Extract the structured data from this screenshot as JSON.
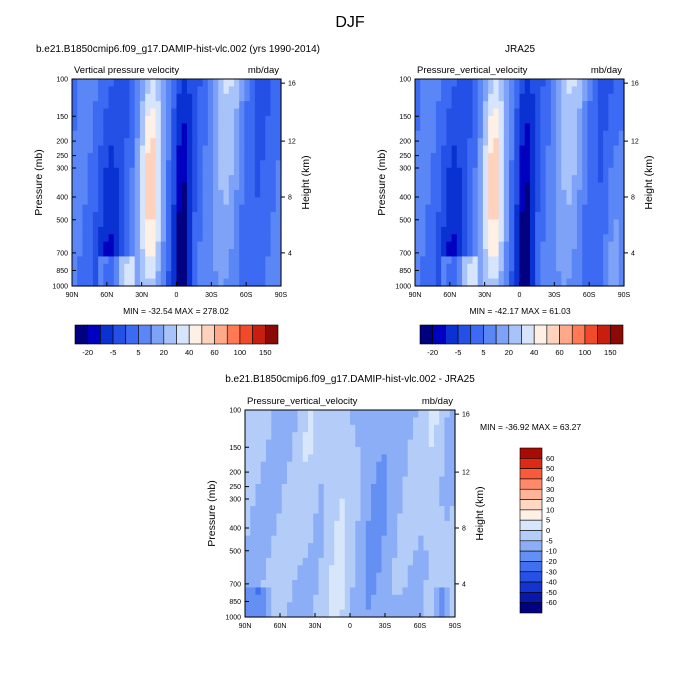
{
  "page": {
    "title": "DJF"
  },
  "colors": {
    "cbar_abs": [
      "#000080",
      "#0000c0",
      "#0a32d2",
      "#2450e6",
      "#3c6af2",
      "#5a86f6",
      "#7ea2f8",
      "#a8c2fa",
      "#d6e4fc",
      "#fff0e6",
      "#ffd2be",
      "#ffa88a",
      "#ff7a54",
      "#f04a2a",
      "#c81e10",
      "#8c0a06"
    ],
    "cbar_diff": [
      "#000080",
      "#0818a8",
      "#1434d0",
      "#2650e6",
      "#4070f0",
      "#6490f4",
      "#8caef6",
      "#b4ccf8",
      "#d8e6fc",
      "#fff0e6",
      "#ffd8c4",
      "#ffb49a",
      "#ff8a6a",
      "#f85a3a",
      "#dc2a14",
      "#a80a04"
    ]
  },
  "chart_data": [
    {
      "type": "heatmap",
      "title": "b.e21.B1850cmip6.f09_g17.DAMIP-hist-vlc.002 (yrs 1990-2014)",
      "subtitle_left": "Vertical pressure velocity",
      "subtitle_right": "mb/day",
      "ylabel": "Pressure (mb)",
      "ylabel_right": "Height (km)",
      "x_ticks": [
        "90N",
        "60N",
        "30N",
        "0",
        "30S",
        "60S",
        "90S"
      ],
      "y_ticks": [
        "100",
        "150",
        "200",
        "250",
        "300",
        "400",
        "500",
        "700",
        "850",
        "1000"
      ],
      "y_ticks_right": [
        "16",
        "12",
        "8",
        "4"
      ],
      "min_max": "MIN = -32.54  MAX = 278.02",
      "colorbar_labels": [
        "-20",
        "-5",
        "5",
        "20",
        "40",
        "60",
        "100",
        "150"
      ]
    },
    {
      "type": "heatmap",
      "title": "JRA25",
      "subtitle_left": "Pressure_vertical_velocity",
      "subtitle_right": "mb/day",
      "ylabel": "Pressure (mb)",
      "ylabel_right": "Height (km)",
      "x_ticks": [
        "90N",
        "60N",
        "30N",
        "0",
        "30S",
        "60S",
        "90S"
      ],
      "y_ticks": [
        "100",
        "150",
        "200",
        "250",
        "300",
        "400",
        "500",
        "700",
        "850",
        "1000"
      ],
      "y_ticks_right": [
        "16",
        "12",
        "8",
        "4"
      ],
      "min_max": "MIN = -42.17  MAX =  61.03",
      "colorbar_labels": [
        "-20",
        "-5",
        "5",
        "20",
        "40",
        "60",
        "100",
        "150"
      ]
    },
    {
      "type": "heatmap",
      "title": "b.e21.B1850cmip6.f09_g17.DAMIP-hist-vlc.002 - JRA25",
      "subtitle_left": "Pressure_vertical_velocity",
      "subtitle_right": "mb/day",
      "ylabel": "Pressure (mb)",
      "ylabel_right": "Height (km)",
      "x_ticks": [
        "90N",
        "60N",
        "30N",
        "0",
        "30S",
        "60S",
        "90S"
      ],
      "y_ticks": [
        "100",
        "150",
        "200",
        "250",
        "300",
        "400",
        "500",
        "700",
        "850",
        "1000"
      ],
      "y_ticks_right": [
        "16",
        "12",
        "8",
        "4"
      ],
      "min_max": "MIN = -36.92  MAX =  63.27",
      "colorbar_labels": [
        "60",
        "50",
        "40",
        "30",
        "20",
        "10",
        "5",
        "0",
        "-5",
        "-10",
        "-20",
        "-30",
        "-40",
        "-50",
        "-60"
      ]
    }
  ]
}
